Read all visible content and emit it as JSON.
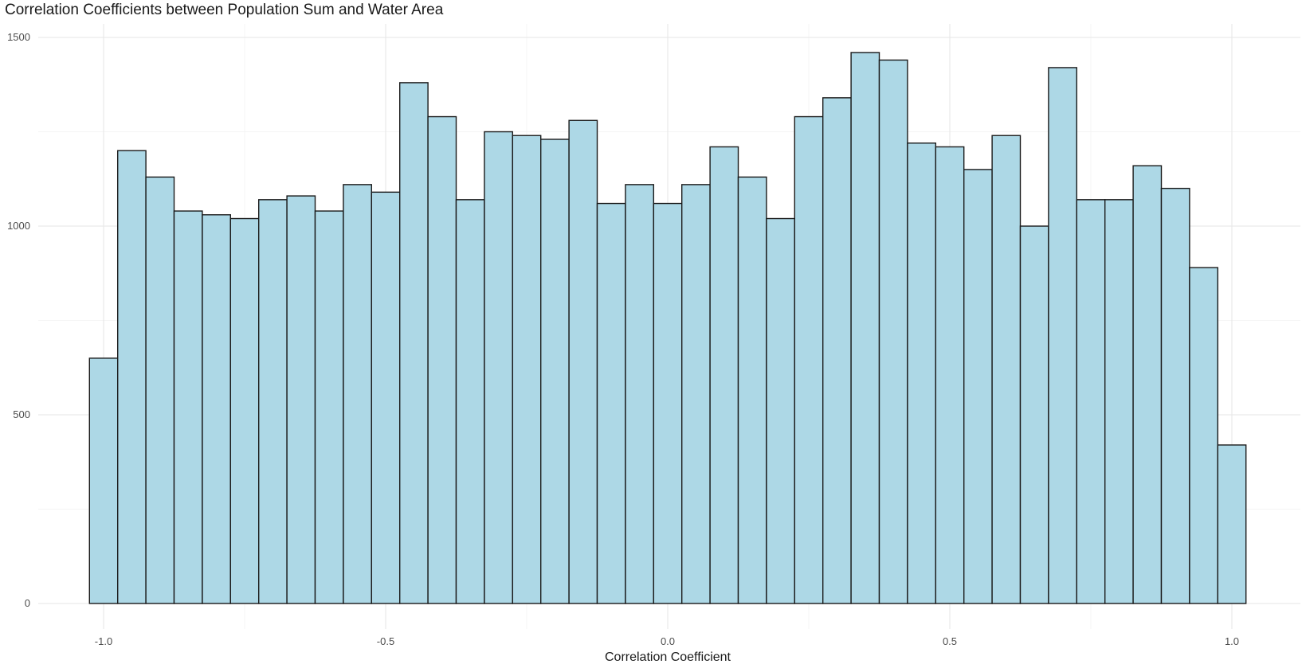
{
  "chart_data": {
    "type": "bar",
    "title": "Correlation Coefficients between Population Sum and Water Area",
    "xlabel": "Correlation Coefficient",
    "ylabel": "",
    "xlim": [
      -1.1,
      1.1
    ],
    "ylim": [
      0,
      1500
    ],
    "bin_width": 0.05,
    "x_ticks": [
      -1.0,
      -0.5,
      0.0,
      0.5,
      1.0
    ],
    "x_tick_labels": [
      "-1.0",
      "-0.5",
      "0.0",
      "0.5",
      "1.0"
    ],
    "y_ticks": [
      0,
      500,
      1000,
      1500
    ],
    "y_tick_labels": [
      "0",
      "500",
      "1000",
      "1500"
    ],
    "grid": true,
    "bar_fill": "#add8e6",
    "bar_outline": "#1a1a1a",
    "x": [
      -1.0,
      -0.95,
      -0.9,
      -0.85,
      -0.8,
      -0.75,
      -0.7,
      -0.65,
      -0.6,
      -0.55,
      -0.5,
      -0.45,
      -0.4,
      -0.35,
      -0.3,
      -0.25,
      -0.2,
      -0.15,
      -0.1,
      -0.05,
      0.0,
      0.05,
      0.1,
      0.15,
      0.2,
      0.25,
      0.3,
      0.35,
      0.4,
      0.45,
      0.5,
      0.55,
      0.6,
      0.65,
      0.7,
      0.75,
      0.8,
      0.85,
      0.9,
      0.95,
      1.0
    ],
    "values": [
      650,
      1200,
      1130,
      1040,
      1030,
      1020,
      1070,
      1080,
      1040,
      1110,
      1090,
      1380,
      1290,
      1070,
      1250,
      1240,
      1230,
      1280,
      1060,
      1110,
      1060,
      1110,
      1210,
      1130,
      1020,
      1290,
      1340,
      1460,
      1440,
      1220,
      1210,
      1150,
      1240,
      1000,
      1420,
      1070,
      1070,
      1160,
      1100,
      890,
      420
    ]
  }
}
